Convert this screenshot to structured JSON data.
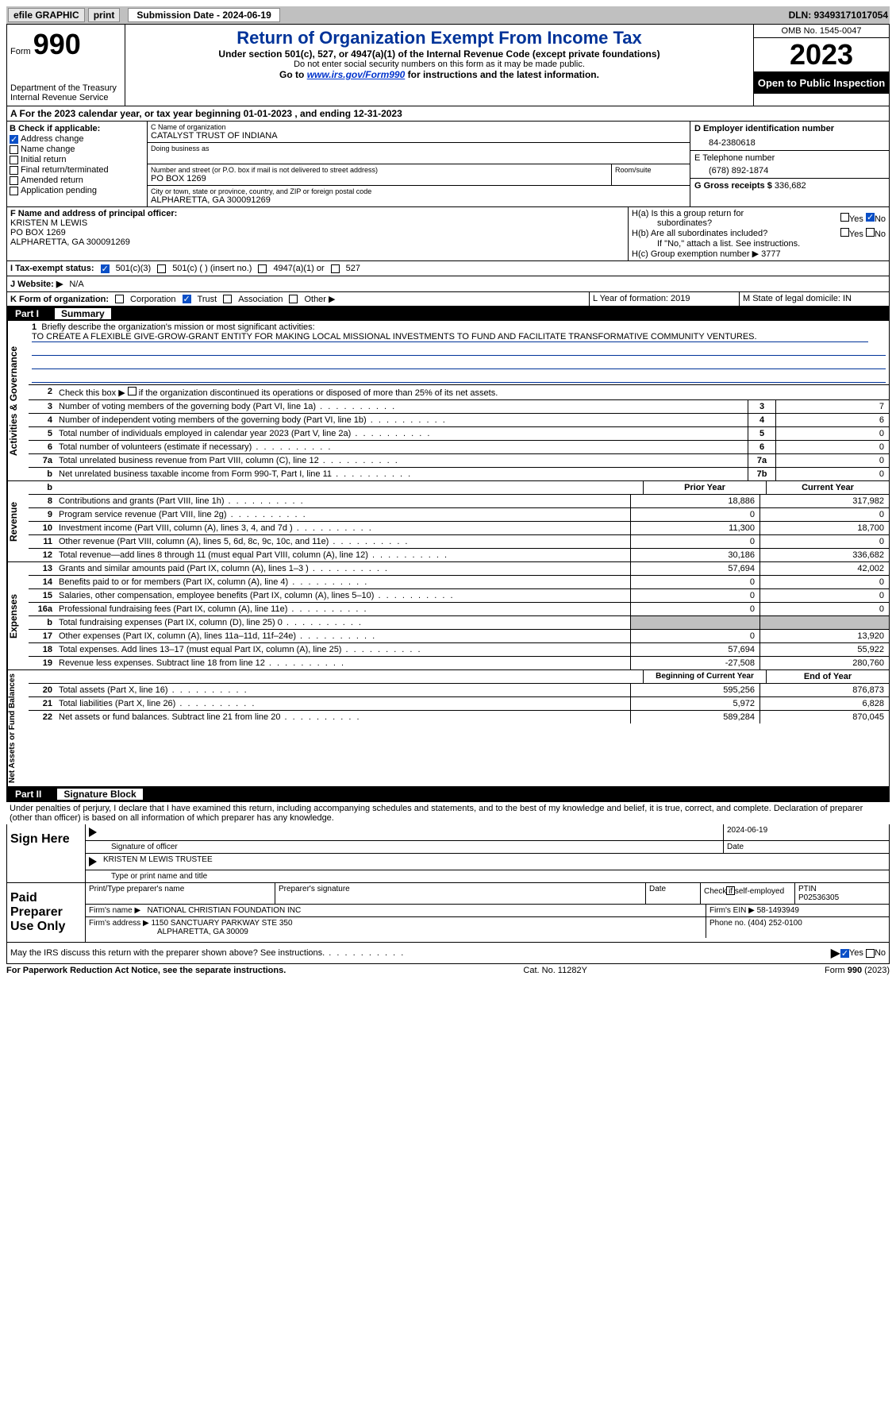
{
  "topbar": {
    "efile": "efile GRAPHIC",
    "print": "print",
    "sub_label": "Submission Date - 2024-06-19",
    "dln": "DLN: 93493171017054"
  },
  "header": {
    "form": "Form",
    "num": "990",
    "dept": "Department of the Treasury Internal Revenue Service",
    "title": "Return of Organization Exempt From Income Tax",
    "sub1": "Under section 501(c), 527, or 4947(a)(1) of the Internal Revenue Code (except private foundations)",
    "sub2": "Do not enter social security numbers on this form as it may be made public.",
    "sub3_pre": "Go to ",
    "sub3_link": "www.irs.gov/Form990",
    "sub3_post": " for instructions and the latest information.",
    "omb": "OMB No. 1545-0047",
    "year": "2023",
    "open": "Open to Public Inspection"
  },
  "period": "A For the 2023 calendar year, or tax year beginning 01-01-2023    , and ending 12-31-2023",
  "sec_b": {
    "title": "B Check if applicable:",
    "items": [
      {
        "label": "Address change",
        "checked": true
      },
      {
        "label": "Name change",
        "checked": false
      },
      {
        "label": "Initial return",
        "checked": false
      },
      {
        "label": "Final return/terminated",
        "checked": false
      },
      {
        "label": "Amended return",
        "checked": false
      },
      {
        "label": "Application pending",
        "checked": false
      }
    ]
  },
  "sec_c": {
    "name_label": "C Name of organization",
    "name": "CATALYST TRUST OF INDIANA",
    "dba_label": "Doing business as",
    "dba": "",
    "addr_label": "Number and street (or P.O. box if mail is not delivered to street address)",
    "room_label": "Room/suite",
    "addr": "PO BOX 1269",
    "city_label": "City or town, state or province, country, and ZIP or foreign postal code",
    "city": "ALPHARETTA, GA   300091269"
  },
  "sec_d": {
    "label": "D Employer identification number",
    "val": "84-2380618"
  },
  "sec_e": {
    "label": "E Telephone number",
    "val": "(678) 892-1874"
  },
  "sec_g": {
    "label": "G Gross receipts $",
    "val": "336,682"
  },
  "sec_f": {
    "label": "F  Name and address of principal officer:",
    "line1": "KRISTEN M LEWIS",
    "line2": "PO BOX 1269",
    "line3": "ALPHARETTA, GA   300091269"
  },
  "sec_h": {
    "a1": "H(a)  Is this a group return for",
    "a2": "subordinates?",
    "b1": "H(b)  Are all subordinates included?",
    "b2": "If \"No,\" attach a list. See instructions.",
    "c": "H(c)  Group exemption number ",
    "c_arrow": "▶",
    "c_val": "3777",
    "yes": "Yes",
    "no": "No"
  },
  "sec_i": {
    "label": "I    Tax-exempt status:",
    "o1": "501(c)(3)",
    "o2": "501(c) (  ) (insert no.)",
    "o3": "4947(a)(1) or",
    "o4": "527"
  },
  "sec_j": {
    "label": "J    Website:  ▶",
    "val": "N/A"
  },
  "sec_k": {
    "label": "K Form of organization:",
    "o1": "Corporation",
    "o2": "Trust",
    "o3": "Association",
    "o4": "Other  ▶"
  },
  "sec_l": {
    "label": "L Year of formation: 2019"
  },
  "sec_m": {
    "label": "M State of legal domicile: IN"
  },
  "part1": {
    "label": "Part I",
    "title": "Summary"
  },
  "summary": {
    "q1_label": "1",
    "q1": "Briefly describe the organization's mission or most significant activities:",
    "q1_val": "TO CREATE A FLEXIBLE GIVE-GROW-GRANT ENTITY FOR MAKING LOCAL MISSIONAL INVESTMENTS TO FUND AND FACILITATE TRANSFORMATIVE COMMUNITY VENTURES.",
    "q2": "Check this box ▶       if the organization discontinued its operations or disposed of more than 25% of its net assets.",
    "rows_top": [
      {
        "n": "3",
        "t": "Number of voting members of the governing body (Part VI, line 1a)",
        "box": "3",
        "v": "7"
      },
      {
        "n": "4",
        "t": "Number of independent voting members of the governing body (Part VI, line 1b)",
        "box": "4",
        "v": "6"
      },
      {
        "n": "5",
        "t": "Total number of individuals employed in calendar year 2023 (Part V, line 2a)",
        "box": "5",
        "v": "0"
      },
      {
        "n": "6",
        "t": "Total number of volunteers (estimate if necessary)",
        "box": "6",
        "v": "0"
      },
      {
        "n": "7a",
        "t": "Total unrelated business revenue from Part VIII, column (C), line 12",
        "box": "7a",
        "v": "0"
      },
      {
        "n": "b",
        "t": "Net unrelated business taxable income from Form 990-T, Part I, line 11",
        "box": "7b",
        "v": "0"
      }
    ],
    "head_prior": "Prior Year",
    "head_curr": "Current Year",
    "revenue_label": "Revenue",
    "revenue": [
      {
        "n": "8",
        "t": "Contributions and grants (Part VIII, line 1h)",
        "p": "18,886",
        "c": "317,982"
      },
      {
        "n": "9",
        "t": "Program service revenue (Part VIII, line 2g)",
        "p": "0",
        "c": "0"
      },
      {
        "n": "10",
        "t": "Investment income (Part VIII, column (A), lines 3, 4, and 7d )",
        "p": "11,300",
        "c": "18,700"
      },
      {
        "n": "11",
        "t": "Other revenue (Part VIII, column (A), lines 5, 6d, 8c, 9c, 10c, and 11e)",
        "p": "0",
        "c": "0"
      },
      {
        "n": "12",
        "t": "Total revenue—add lines 8 through 11 (must equal Part VIII, column (A), line 12)",
        "p": "30,186",
        "c": "336,682"
      }
    ],
    "exp_label": "Expenses",
    "expenses": [
      {
        "n": "13",
        "t": "Grants and similar amounts paid (Part IX, column (A), lines 1–3 )",
        "p": "57,694",
        "c": "42,002"
      },
      {
        "n": "14",
        "t": "Benefits paid to or for members (Part IX, column (A), line 4)",
        "p": "0",
        "c": "0"
      },
      {
        "n": "15",
        "t": "Salaries, other compensation, employee benefits (Part IX, column (A), lines 5–10)",
        "p": "0",
        "c": "0"
      },
      {
        "n": "16a",
        "t": "Professional fundraising fees (Part IX, column (A), line 11e)",
        "p": "0",
        "c": "0"
      },
      {
        "n": "b",
        "t": "Total fundraising expenses (Part IX, column (D), line 25) 0",
        "p": "grey",
        "c": "grey"
      },
      {
        "n": "17",
        "t": "Other expenses (Part IX, column (A), lines 11a–11d, 11f–24e)",
        "p": "0",
        "c": "13,920"
      },
      {
        "n": "18",
        "t": "Total expenses. Add lines 13–17 (must equal Part IX, column (A), line 25)",
        "p": "57,694",
        "c": "55,922"
      },
      {
        "n": "19",
        "t": "Revenue less expenses. Subtract line 18 from line 12",
        "p": "-27,508",
        "c": "280,760"
      }
    ],
    "na_label": "Net Assets or Fund Balances",
    "head_beg": "Beginning of Current Year",
    "head_end": "End of Year",
    "netassets": [
      {
        "n": "20",
        "t": "Total assets (Part X, line 16)",
        "p": "595,256",
        "c": "876,873"
      },
      {
        "n": "21",
        "t": "Total liabilities (Part X, line 26)",
        "p": "5,972",
        "c": "6,828"
      },
      {
        "n": "22",
        "t": "Net assets or fund balances. Subtract line 21 from line 20",
        "p": "589,284",
        "c": "870,045"
      }
    ],
    "gov_label": "Activities & Governance"
  },
  "part2": {
    "label": "Part II",
    "title": "Signature Block"
  },
  "decl": "Under penalties of perjury, I declare that I have examined this return, including accompanying schedules and statements, and to the best of my knowledge and belief, it is true, correct, and complete. Declaration of preparer (other than officer) is based on all information of which preparer has any knowledge.",
  "sign": {
    "here": "Sign Here",
    "sig_of": "Signature of officer",
    "date_label": "Date",
    "date": "2024-06-19",
    "name": "KRISTEN M LEWIS  TRUSTEE",
    "type_label": "Type or print name and title"
  },
  "paid": {
    "title": "Paid Preparer Use Only",
    "print_label": "Print/Type preparer's name",
    "sig_label": "Preparer's signature",
    "date_label": "Date",
    "self_label": "Check        if self-employed",
    "ptin_label": "PTIN",
    "ptin": "P02536305",
    "firm_name_label": "Firm's name    ▶",
    "firm_name": "NATIONAL CHRISTIAN FOUNDATION INC",
    "firm_ein_label": "Firm's EIN ▶",
    "firm_ein": "58-1493949",
    "firm_addr_label": "Firm's address ▶",
    "firm_addr1": "1150 SANCTUARY PARKWAY STE 350",
    "firm_addr2": "ALPHARETTA, GA   30009",
    "phone_label": "Phone no.",
    "phone": "(404) 252-0100"
  },
  "discuss": "May the IRS discuss this return with the preparer shown above? See instructions.",
  "foot": {
    "left": "For Paperwork Reduction Act Notice, see the separate instructions.",
    "mid": "Cat. No. 11282Y",
    "right": "Form 990 (2023)"
  }
}
